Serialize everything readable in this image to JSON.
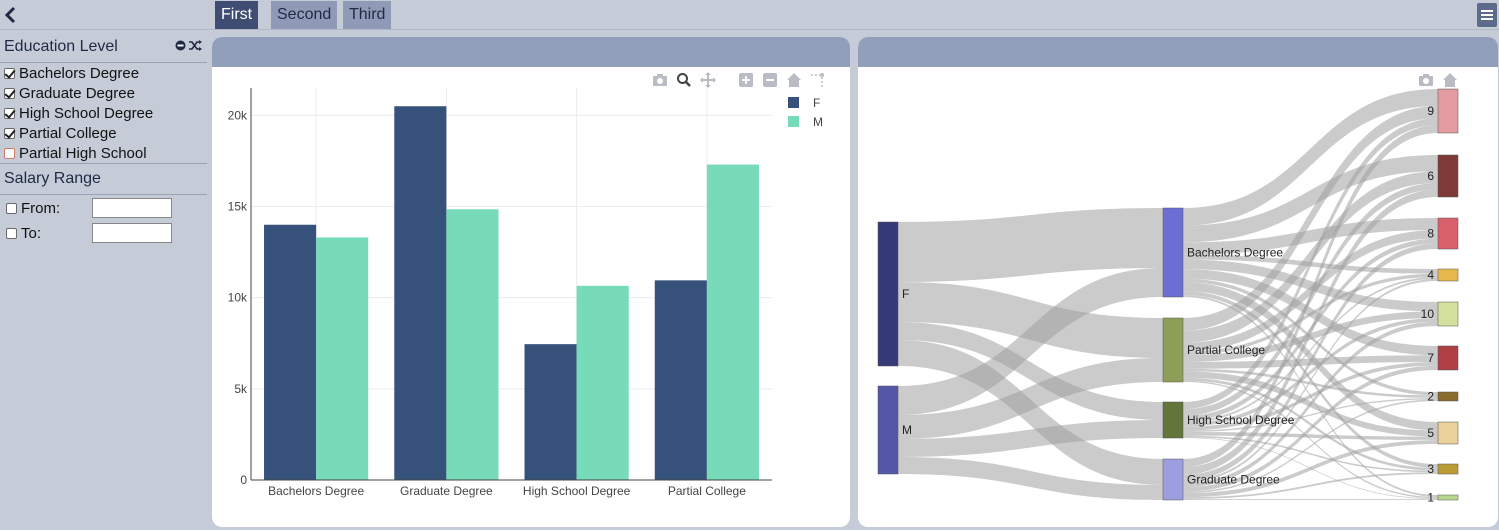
{
  "tabs": [
    {
      "label": "First",
      "active": true
    },
    {
      "label": "Second",
      "active": false
    },
    {
      "label": "Third",
      "active": false
    }
  ],
  "sidebar": {
    "education": {
      "title": "Education Level",
      "items": [
        {
          "label": "Bachelors Degree",
          "checked": true
        },
        {
          "label": "Graduate Degree",
          "checked": true
        },
        {
          "label": "High School Degree",
          "checked": true
        },
        {
          "label": "Partial College",
          "checked": true
        },
        {
          "label": "Partial High School",
          "checked": false
        }
      ]
    },
    "salary": {
      "title": "Salary Range",
      "from_label": "From:",
      "to_label": "To:",
      "from_value": "",
      "to_value": ""
    }
  },
  "colors": {
    "female": "#36527a",
    "male": "#77dab8"
  },
  "chart_data": [
    {
      "type": "bar",
      "categories": [
        "Bachelors Degree",
        "Graduate Degree",
        "High School Degree",
        "Partial College"
      ],
      "series": [
        {
          "name": "F",
          "values": [
            14000,
            20500,
            7450,
            10950
          ]
        },
        {
          "name": "M",
          "values": [
            13300,
            14850,
            10650,
            17300
          ]
        }
      ],
      "yticks": [
        "0",
        "5k",
        "10k",
        "15k",
        "20k"
      ],
      "ylim": [
        0,
        21500
      ],
      "grid": true,
      "legend": "top-right"
    },
    {
      "type": "sankey",
      "sources": [
        {
          "label": "F",
          "color": "#363a78"
        },
        {
          "label": "M",
          "color": "#5456a8"
        }
      ],
      "middle": [
        {
          "label": "Bachelors Degree",
          "color": "#6c6ed4"
        },
        {
          "label": "Partial College",
          "color": "#8c9e58"
        },
        {
          "label": "High School Degree",
          "color": "#62753a"
        },
        {
          "label": "Graduate Degree",
          "color": "#9c9ee0"
        }
      ],
      "targets": [
        {
          "label": "9",
          "color": "#e59ba2"
        },
        {
          "label": "6",
          "color": "#7e3a36"
        },
        {
          "label": "8",
          "color": "#d8606a"
        },
        {
          "label": "4",
          "color": "#e6b84e"
        },
        {
          "label": "10",
          "color": "#d2e29c"
        },
        {
          "label": "7",
          "color": "#ae4046"
        },
        {
          "label": "2",
          "color": "#8a6c2e"
        },
        {
          "label": "5",
          "color": "#ead09a"
        },
        {
          "label": "3",
          "color": "#bc9c36"
        },
        {
          "label": "1",
          "color": "#b6d88c"
        }
      ]
    }
  ]
}
